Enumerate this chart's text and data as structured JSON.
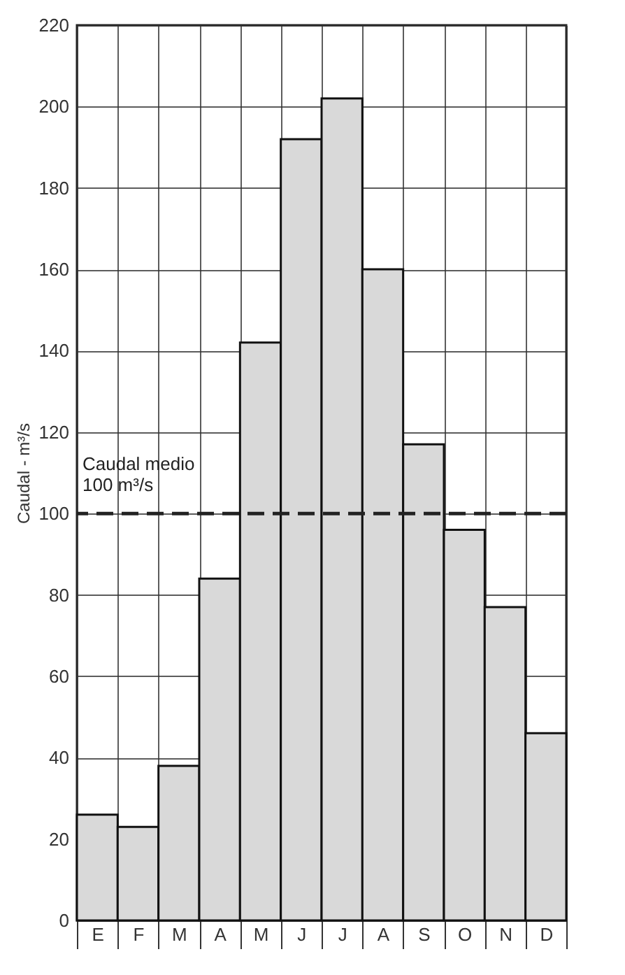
{
  "chart_data": {
    "type": "bar",
    "ylabel": "Caudal - m³/s",
    "categories": [
      "E",
      "F",
      "M",
      "A",
      "M",
      "J",
      "J",
      "A",
      "S",
      "O",
      "N",
      "D"
    ],
    "values": [
      26,
      23,
      38,
      84,
      142,
      192,
      202,
      160,
      117,
      96,
      77,
      46
    ],
    "color": "#d9d9d9",
    "ylim": [
      0,
      220
    ],
    "yticks": [
      0,
      20,
      40,
      60,
      80,
      100,
      120,
      140,
      160,
      180,
      200,
      220
    ],
    "grid": true,
    "ref_lines": [
      {
        "axis": "y",
        "value": 100,
        "label": "Caudal medio\n100 m³/s",
        "color": "#222222",
        "line_style": "dashed"
      }
    ]
  }
}
